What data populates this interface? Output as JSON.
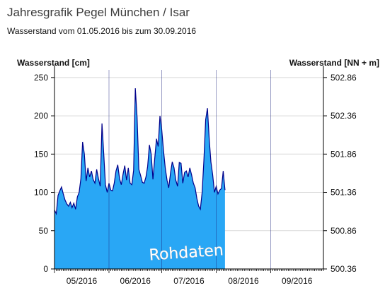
{
  "header": {
    "title": "Jahresgrafik Pegel München / Isar",
    "subtitle": "Wasserstand vom 01.05.2016 bis zum 30.09.2016"
  },
  "chart_data": {
    "type": "area",
    "title": "Jahresgrafik Pegel München / Isar",
    "subtitle": "Wasserstand vom 01.05.2016 bis zum 30.09.2016",
    "ylabel": "Wasserstand [cm]",
    "ylabel_right": "Wasserstand [NN + m]",
    "ylim": [
      0,
      260
    ],
    "ylim_right": [
      500.36,
      502.96
    ],
    "yticks": [
      0,
      50,
      100,
      150,
      200,
      250
    ],
    "yticks_right": [
      "500.36",
      "500.86",
      "501.36",
      "501.86",
      "502.36",
      "502.86"
    ],
    "xlim": [
      0,
      153
    ],
    "month_labels": [
      "05/2016",
      "06/2016",
      "07/2016",
      "08/2016",
      "09/2016"
    ],
    "month_starts": [
      0,
      31,
      61,
      92,
      123
    ],
    "watermark": "Rohdaten",
    "fill_color": "#29a7f5",
    "line_color": "#00008b",
    "grid": true,
    "series": [
      {
        "x": [
          0,
          1,
          2,
          3,
          4,
          5,
          6,
          7,
          8,
          9,
          10,
          11,
          12,
          13,
          14,
          15,
          16,
          17,
          18,
          19,
          20,
          21,
          22,
          23,
          24,
          25,
          26,
          27,
          28,
          29,
          30,
          31,
          32,
          33,
          34,
          35,
          36,
          37,
          38,
          39,
          40,
          41,
          42,
          43,
          44,
          45,
          46,
          47,
          48,
          49,
          50,
          51,
          52,
          53,
          54,
          55,
          56,
          57,
          58,
          59,
          60,
          61,
          62,
          63,
          64,
          65,
          66,
          67,
          68,
          69,
          70,
          71,
          72,
          73,
          74,
          75,
          76,
          77,
          78,
          79,
          80,
          81,
          82,
          83,
          84,
          85,
          86,
          87,
          88,
          89,
          90,
          91,
          92,
          93,
          94,
          95,
          96,
          97
        ],
        "y": [
          77,
          72,
          96,
          102,
          107,
          98,
          90,
          85,
          82,
          87,
          80,
          86,
          78,
          94,
          100,
          118,
          166,
          150,
          115,
          132,
          120,
          128,
          117,
          112,
          130,
          118,
          108,
          190,
          152,
          110,
          100,
          112,
          103,
          102,
          112,
          128,
          136,
          118,
          110,
          124,
          135,
          116,
          132,
          112,
          110,
          129,
          236,
          198,
          130,
          122,
          113,
          112,
          120,
          134,
          162,
          150,
          117,
          144,
          170,
          160,
          200,
          182,
          155,
          132,
          116,
          106,
          125,
          140,
          132,
          116,
          108,
          139,
          138,
          112,
          126,
          128,
          120,
          132,
          123,
          112,
          106,
          92,
          82,
          78,
          100,
          142,
          195,
          210,
          170,
          140,
          123,
          100,
          108,
          98,
          103,
          105,
          128,
          103
        ]
      }
    ]
  }
}
